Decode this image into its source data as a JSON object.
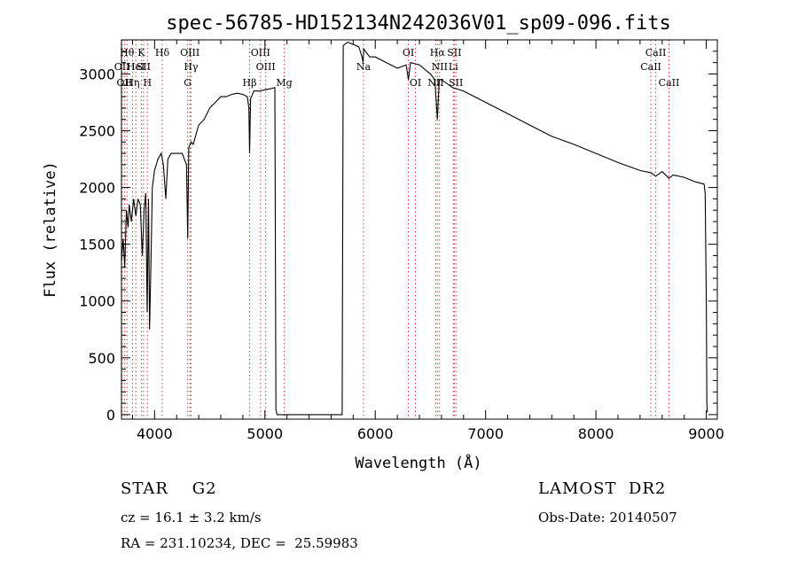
{
  "chart_data": {
    "type": "line",
    "title": "spec-56785-HD152134N242036V01_sp09-096.fits",
    "xlabel": "Wavelength (Å)",
    "ylabel": "Flux (relative)",
    "xlim": [
      3700,
      9100
    ],
    "ylim": [
      -40,
      3300
    ],
    "x_ticks": [
      4000,
      5000,
      6000,
      7000,
      8000,
      9000
    ],
    "y_ticks": [
      0,
      500,
      1000,
      1500,
      2000,
      2500,
      3000
    ],
    "grid": false,
    "series": [
      {
        "x": [
          3700,
          3715,
          3730,
          3745,
          3760,
          3770,
          3790,
          3810,
          3830,
          3850,
          3870,
          3889,
          3905,
          3920,
          3933,
          3945,
          3955,
          3968,
          3980,
          4000,
          4030,
          4060,
          4080,
          4102,
          4120,
          4150,
          4200,
          4250,
          4290,
          4300,
          4310,
          4330,
          4350,
          4400,
          4450,
          4500,
          4550,
          4600,
          4650,
          4700,
          4750,
          4800,
          4840,
          4855,
          4861,
          4870,
          4900,
          4950,
          5000,
          5050,
          5090,
          5100,
          5110,
          5700,
          5710,
          5750,
          5800,
          5850,
          5880,
          5890,
          5895,
          5910,
          5950,
          6000,
          6100,
          6200,
          6280,
          6300,
          6320,
          6400,
          6500,
          6540,
          6563,
          6580,
          6600,
          6700,
          6800,
          6900,
          7000,
          7200,
          7400,
          7600,
          7800,
          8000,
          8200,
          8400,
          8498,
          8542,
          8600,
          8662,
          8700,
          8800,
          8900,
          8980,
          8990,
          9000,
          9005,
          9010
        ],
        "y": [
          1350,
          1550,
          1300,
          1800,
          1650,
          1850,
          1700,
          1900,
          1750,
          1900,
          1850,
          1400,
          1800,
          1950,
          900,
          1900,
          750,
          1400,
          2000,
          2150,
          2250,
          2300,
          2200,
          1900,
          2250,
          2300,
          2300,
          2300,
          2200,
          1550,
          2350,
          2400,
          2380,
          2550,
          2600,
          2700,
          2750,
          2800,
          2800,
          2820,
          2830,
          2820,
          2800,
          2700,
          2300,
          2780,
          2850,
          2850,
          2860,
          2870,
          2880,
          40,
          0,
          0,
          3250,
          3280,
          3260,
          3240,
          3150,
          3100,
          3220,
          3200,
          3150,
          3150,
          3100,
          3050,
          3080,
          2950,
          3100,
          3080,
          3000,
          2950,
          2600,
          2950,
          2950,
          2880,
          2850,
          2800,
          2750,
          2650,
          2550,
          2450,
          2380,
          2300,
          2220,
          2150,
          2130,
          2100,
          2140,
          2080,
          2110,
          2090,
          2050,
          2030,
          1950,
          1000,
          100,
          20
        ]
      }
    ],
    "lines": [
      {
        "x": 3705,
        "label": "OII",
        "row": 1
      },
      {
        "x": 3727,
        "label": "OII",
        "row": 2
      },
      {
        "x": 3750,
        "label": "Hθ",
        "row": 0
      },
      {
        "x": 3800,
        "label": "Hη",
        "row": 2
      },
      {
        "x": 3830,
        "label": "HeI",
        "row": 1
      },
      {
        "x": 3880,
        "label": "K",
        "row": 0
      },
      {
        "x": 3900,
        "label": "SII",
        "row": 1
      },
      {
        "x": 3935,
        "label": "H",
        "row": 2
      },
      {
        "x": 4070,
        "label": "Hδ",
        "row": 0
      },
      {
        "x": 4320,
        "label": "OIII",
        "row": 0
      },
      {
        "x": 4330,
        "label": "Hγ",
        "row": 1
      },
      {
        "x": 4300,
        "label": "G",
        "row": 2
      },
      {
        "x": 4861,
        "label": "Hβ",
        "row": 2
      },
      {
        "x": 4960,
        "label": "OIII",
        "row": 0
      },
      {
        "x": 5007,
        "label": "OIII",
        "row": 1
      },
      {
        "x": 5175,
        "label": "Mg",
        "row": 2
      },
      {
        "x": 5893,
        "label": "Na",
        "row": 1
      },
      {
        "x": 6300,
        "label": "OI",
        "row": 0
      },
      {
        "x": 6364,
        "label": "OI",
        "row": 2
      },
      {
        "x": 6563,
        "label": "Hα",
        "row": 0
      },
      {
        "x": 6583,
        "label": "NII",
        "row": 1
      },
      {
        "x": 6548,
        "label": "NII",
        "row": 2
      },
      {
        "x": 6716,
        "label": "SII",
        "row": 0
      },
      {
        "x": 6708,
        "label": "Li",
        "row": 1
      },
      {
        "x": 6731,
        "label": "SII",
        "row": 2
      },
      {
        "x": 8498,
        "label": "CaII",
        "row": 1
      },
      {
        "x": 8542,
        "label": "CaII",
        "row": 0
      },
      {
        "x": 8662,
        "label": "CaII",
        "row": 2
      }
    ]
  },
  "info": {
    "class": "STAR    G2",
    "survey": "LAMOST  DR2",
    "redshift": "cz = 16.1 ± 3.2 km/s",
    "obs_date": "Obs-Date: 20140507",
    "coords": "RA = 231.10234, DEC =  25.59983"
  }
}
